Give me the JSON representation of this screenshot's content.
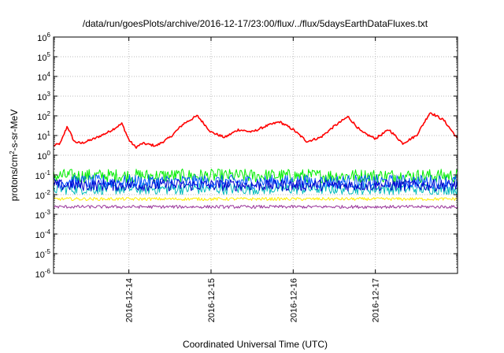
{
  "chart_data": {
    "type": "line",
    "title": "/data/run/goesPlots/archive/2016-12-17/23:00/flux/../flux/5daysEarthDataFluxes.txt",
    "xlabel": "Coordinated Universal Time (UTC)",
    "ylabel": "protons/cm²-s-sr-MeV",
    "y_scale": "log",
    "ylim": [
      1e-06,
      1000000.0
    ],
    "y_ticks": [
      {
        "base": "10",
        "exp": "-6"
      },
      {
        "base": "10",
        "exp": "-5"
      },
      {
        "base": "10",
        "exp": "-4"
      },
      {
        "base": "10",
        "exp": "-3"
      },
      {
        "base": "10",
        "exp": "-2"
      },
      {
        "base": "10",
        "exp": "-1"
      },
      {
        "base": "10",
        "exp": "0"
      },
      {
        "base": "10",
        "exp": "1"
      },
      {
        "base": "10",
        "exp": "2"
      },
      {
        "base": "10",
        "exp": "3"
      },
      {
        "base": "10",
        "exp": "4"
      },
      {
        "base": "10",
        "exp": "5"
      },
      {
        "base": "10",
        "exp": "6"
      }
    ],
    "xlim": [
      "2016-12-13T02:00",
      "2016-12-18T00:00"
    ],
    "x_ticks": [
      "2016-12-14",
      "2016-12-15",
      "2016-12-16",
      "2016-12-17"
    ],
    "grid": true,
    "legend": "none",
    "series": [
      {
        "color": "#ff0000",
        "x": [
          "2016-12-13T02:00",
          "2016-12-13T04:00",
          "2016-12-13T06:00",
          "2016-12-13T08:00",
          "2016-12-13T10:00",
          "2016-12-13T14:00",
          "2016-12-13T18:00",
          "2016-12-13T22:00",
          "2016-12-14T00:00",
          "2016-12-14T02:00",
          "2016-12-14T04:00",
          "2016-12-14T08:00",
          "2016-12-14T12:00",
          "2016-12-14T16:00",
          "2016-12-14T20:00",
          "2016-12-15T00:00",
          "2016-12-15T04:00",
          "2016-12-15T08:00",
          "2016-12-15T12:00",
          "2016-12-15T16:00",
          "2016-12-15T20:00",
          "2016-12-16T00:00",
          "2016-12-16T04:00",
          "2016-12-16T08:00",
          "2016-12-16T12:00",
          "2016-12-16T16:00",
          "2016-12-16T20:00",
          "2016-12-17T00:00",
          "2016-12-17T04:00",
          "2016-12-17T08:00",
          "2016-12-17T12:00",
          "2016-12-17T16:00",
          "2016-12-17T20:00",
          "2016-12-18T00:00"
        ],
        "y": [
          3,
          4,
          30,
          5,
          4,
          7,
          15,
          40,
          6,
          2.5,
          4,
          3,
          8,
          40,
          100,
          15,
          8,
          20,
          15,
          30,
          50,
          20,
          5,
          8,
          30,
          90,
          15,
          7,
          20,
          4,
          10,
          150,
          60,
          7
        ]
      },
      {
        "color": "#00ee00",
        "x": [
          "2016-12-13T02:00",
          "2016-12-18T00:00"
        ],
        "y": [
          0.09,
          0.09
        ],
        "variation_decades": 0.35
      },
      {
        "color": "#00bbbb",
        "x": [
          "2016-12-13T02:00",
          "2016-12-18T00:00"
        ],
        "y": [
          0.02,
          0.02
        ],
        "variation_decades": 0.3
      },
      {
        "color": "#0055ff",
        "x": [
          "2016-12-13T02:00",
          "2016-12-18T00:00"
        ],
        "y": [
          0.045,
          0.045
        ],
        "variation_decades": 0.35
      },
      {
        "color": "#0000cc",
        "x": [
          "2016-12-13T02:00",
          "2016-12-18T00:00"
        ],
        "y": [
          0.03,
          0.03
        ],
        "variation_decades": 0.3
      },
      {
        "color": "#ffee00",
        "x": [
          "2016-12-13T02:00",
          "2016-12-18T00:00"
        ],
        "y": [
          0.006,
          0.006
        ],
        "variation_decades": 0.08
      },
      {
        "color": "#993399",
        "x": [
          "2016-12-13T02:00",
          "2016-12-18T00:00"
        ],
        "y": [
          0.0024,
          0.0024
        ],
        "variation_decades": 0.08
      }
    ]
  }
}
